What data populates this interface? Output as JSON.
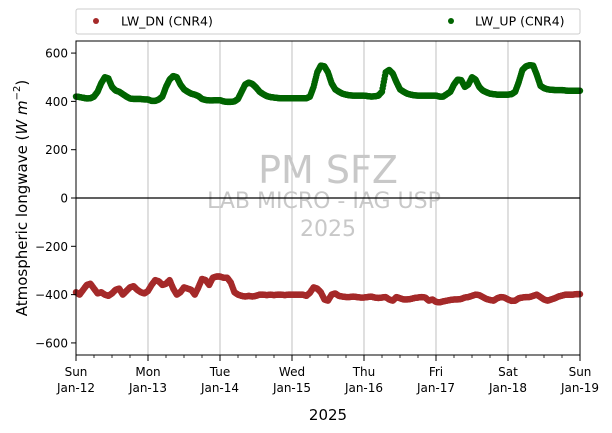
{
  "chart_data": {
    "type": "scatter",
    "watermark": {
      "title": "PM SFZ",
      "line1": "LAB MICRO - IAG USP",
      "line2": "2025"
    },
    "legend": {
      "placement": "top",
      "entries": [
        {
          "label": "LW_DN (CNR4)",
          "color": "#a52a2a"
        },
        {
          "label": "LW_UP (CNR4)",
          "color": "#006400"
        }
      ]
    },
    "ylabel": "Atmospheric longwave (",
    "ylabel_unit": "W m",
    "ylabel_exp": "−2",
    "ylabel_close": ")",
    "xlabel": "2025",
    "ylim": [
      -650,
      650
    ],
    "xlim": [
      0,
      7
    ],
    "grid": {
      "x": true,
      "y": false
    },
    "zero_line": true,
    "yticks": [
      {
        "value": 600,
        "label": "600"
      },
      {
        "value": 400,
        "label": "400"
      },
      {
        "value": 200,
        "label": "200"
      },
      {
        "value": 0,
        "label": "0"
      },
      {
        "value": -200,
        "label": "−200"
      },
      {
        "value": -400,
        "label": "−400"
      },
      {
        "value": -600,
        "label": "−600"
      }
    ],
    "xticks": [
      {
        "value": 0,
        "day": "Sun",
        "date": "Jan-12"
      },
      {
        "value": 1,
        "day": "Mon",
        "date": "Jan-13"
      },
      {
        "value": 2,
        "day": "Tue",
        "date": "Jan-14"
      },
      {
        "value": 3,
        "day": "Wed",
        "date": "Jan-15"
      },
      {
        "value": 4,
        "day": "Thu",
        "date": "Jan-16"
      },
      {
        "value": 5,
        "day": "Fri",
        "date": "Jan-17"
      },
      {
        "value": 6,
        "day": "Sat",
        "date": "Jan-18"
      },
      {
        "value": 7,
        "day": "Sun",
        "date": "Jan-19"
      }
    ],
    "series": [
      {
        "name": "LW_UP (CNR4)",
        "color": "#006400",
        "x": [
          0,
          0.05,
          0.1,
          0.15,
          0.2,
          0.25,
          0.3,
          0.35,
          0.4,
          0.45,
          0.5,
          0.55,
          0.6,
          0.65,
          0.7,
          0.75,
          0.8,
          0.85,
          0.9,
          0.95,
          1.0,
          1.05,
          1.1,
          1.15,
          1.2,
          1.25,
          1.3,
          1.35,
          1.4,
          1.45,
          1.5,
          1.55,
          1.6,
          1.65,
          1.7,
          1.75,
          1.8,
          1.85,
          1.9,
          1.95,
          2.0,
          2.05,
          2.1,
          2.15,
          2.2,
          2.25,
          2.3,
          2.35,
          2.4,
          2.45,
          2.5,
          2.55,
          2.6,
          2.65,
          2.7,
          2.75,
          2.8,
          2.85,
          2.9,
          2.95,
          3.0,
          3.05,
          3.1,
          3.15,
          3.2,
          3.25,
          3.3,
          3.35,
          3.4,
          3.45,
          3.5,
          3.55,
          3.6,
          3.65,
          3.7,
          3.75,
          3.8,
          3.85,
          3.9,
          3.95,
          4.0,
          4.05,
          4.1,
          4.15,
          4.2,
          4.25,
          4.3,
          4.35,
          4.4,
          4.45,
          4.5,
          4.55,
          4.6,
          4.65,
          4.7,
          4.75,
          4.8,
          4.85,
          4.9,
          4.95,
          5.0,
          5.05,
          5.1,
          5.15,
          5.2,
          5.25,
          5.3,
          5.35,
          5.4,
          5.45,
          5.5,
          5.55,
          5.6,
          5.65,
          5.7,
          5.75,
          5.8,
          5.85,
          5.9,
          5.95,
          6.0,
          6.05,
          6.1,
          6.15,
          6.2,
          6.25,
          6.3,
          6.35,
          6.4,
          6.45,
          6.5,
          6.55,
          6.6,
          6.65,
          6.7,
          6.75,
          6.8,
          6.85,
          6.9,
          6.95,
          7.0
        ],
        "y": [
          420,
          418,
          415,
          412,
          413,
          420,
          440,
          475,
          500,
          495,
          460,
          445,
          440,
          430,
          420,
          412,
          410,
          410,
          410,
          408,
          408,
          402,
          402,
          408,
          420,
          460,
          490,
          505,
          500,
          470,
          450,
          440,
          432,
          428,
          422,
          410,
          406,
          404,
          404,
          405,
          405,
          400,
          398,
          398,
          400,
          410,
          440,
          470,
          478,
          472,
          458,
          440,
          430,
          422,
          418,
          416,
          414,
          413,
          413,
          413,
          413,
          413,
          413,
          413,
          413,
          420,
          460,
          520,
          548,
          545,
          520,
          475,
          450,
          440,
          432,
          428,
          425,
          424,
          424,
          424,
          424,
          422,
          420,
          421,
          424,
          440,
          520,
          530,
          515,
          480,
          450,
          440,
          432,
          428,
          425,
          424,
          424,
          424,
          424,
          424,
          424,
          420,
          420,
          430,
          440,
          470,
          490,
          488,
          460,
          470,
          500,
          490,
          460,
          445,
          438,
          432,
          430,
          428,
          428,
          428,
          428,
          430,
          440,
          480,
          530,
          545,
          550,
          548,
          510,
          465,
          455,
          450,
          448,
          447,
          447,
          447,
          445,
          444,
          444,
          444,
          444
        ]
      },
      {
        "name": "LW_DN (CNR4)",
        "color": "#a52a2a",
        "x": [
          0,
          0.05,
          0.1,
          0.15,
          0.2,
          0.25,
          0.3,
          0.35,
          0.4,
          0.45,
          0.5,
          0.55,
          0.6,
          0.65,
          0.7,
          0.75,
          0.8,
          0.85,
          0.9,
          0.95,
          1.0,
          1.05,
          1.1,
          1.15,
          1.2,
          1.25,
          1.3,
          1.35,
          1.4,
          1.45,
          1.5,
          1.55,
          1.6,
          1.65,
          1.7,
          1.75,
          1.8,
          1.85,
          1.9,
          1.95,
          2.0,
          2.05,
          2.1,
          2.15,
          2.2,
          2.25,
          2.3,
          2.35,
          2.4,
          2.45,
          2.5,
          2.55,
          2.6,
          2.65,
          2.7,
          2.75,
          2.8,
          2.85,
          2.9,
          2.95,
          3.0,
          3.05,
          3.1,
          3.15,
          3.2,
          3.25,
          3.3,
          3.35,
          3.4,
          3.45,
          3.5,
          3.55,
          3.6,
          3.65,
          3.7,
          3.75,
          3.8,
          3.85,
          3.9,
          3.95,
          4.0,
          4.05,
          4.1,
          4.15,
          4.2,
          4.25,
          4.3,
          4.35,
          4.4,
          4.45,
          4.5,
          4.55,
          4.6,
          4.65,
          4.7,
          4.75,
          4.8,
          4.85,
          4.9,
          4.95,
          5.0,
          5.05,
          5.1,
          5.15,
          5.2,
          5.25,
          5.3,
          5.35,
          5.4,
          5.45,
          5.5,
          5.55,
          5.6,
          5.65,
          5.7,
          5.75,
          5.8,
          5.85,
          5.9,
          5.95,
          6.0,
          6.05,
          6.1,
          6.15,
          6.2,
          6.25,
          6.3,
          6.35,
          6.4,
          6.45,
          6.5,
          6.55,
          6.6,
          6.65,
          6.7,
          6.75,
          6.8,
          6.85,
          6.9,
          6.95,
          7.0
        ],
        "y": [
          -390,
          -400,
          -380,
          -360,
          -355,
          -375,
          -395,
          -390,
          -400,
          -405,
          -395,
          -380,
          -375,
          -400,
          -385,
          -370,
          -365,
          -380,
          -390,
          -395,
          -385,
          -360,
          -340,
          -345,
          -360,
          -355,
          -340,
          -375,
          -400,
          -390,
          -370,
          -375,
          -380,
          -400,
          -370,
          -335,
          -340,
          -360,
          -330,
          -325,
          -325,
          -330,
          -330,
          -350,
          -390,
          -400,
          -405,
          -408,
          -405,
          -408,
          -405,
          -400,
          -400,
          -402,
          -400,
          -402,
          -400,
          -400,
          -402,
          -400,
          -400,
          -400,
          -400,
          -400,
          -405,
          -392,
          -370,
          -375,
          -390,
          -420,
          -425,
          -400,
          -395,
          -405,
          -408,
          -410,
          -410,
          -408,
          -410,
          -412,
          -412,
          -410,
          -408,
          -412,
          -414,
          -412,
          -410,
          -420,
          -425,
          -410,
          -415,
          -420,
          -420,
          -418,
          -414,
          -412,
          -410,
          -412,
          -425,
          -420,
          -430,
          -432,
          -428,
          -425,
          -422,
          -420,
          -420,
          -418,
          -412,
          -410,
          -405,
          -400,
          -402,
          -410,
          -418,
          -422,
          -425,
          -415,
          -410,
          -412,
          -420,
          -426,
          -425,
          -415,
          -412,
          -410,
          -410,
          -405,
          -400,
          -410,
          -420,
          -425,
          -420,
          -415,
          -408,
          -404,
          -400,
          -400,
          -400,
          -398,
          -398
        ]
      }
    ]
  }
}
